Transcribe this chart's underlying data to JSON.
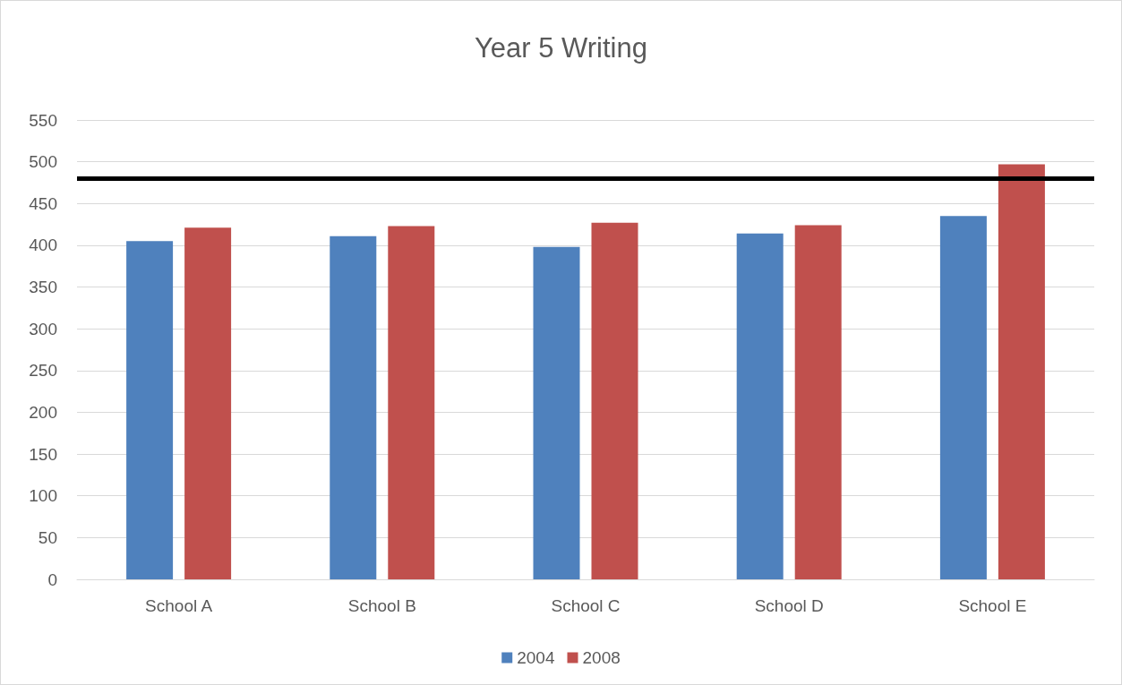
{
  "chart_data": {
    "type": "bar",
    "title": "Year 5 Writing",
    "categories": [
      "School A",
      "School B",
      "School C",
      "School D",
      "School E"
    ],
    "series": [
      {
        "name": "2004",
        "color": "#4f81bd",
        "values": [
          405,
          411,
          398,
          414,
          435
        ]
      },
      {
        "name": "2008",
        "color": "#c0504d",
        "values": [
          421,
          423,
          427,
          424,
          497
        ]
      }
    ],
    "ylim": [
      0,
      550
    ],
    "yticks": [
      0,
      50,
      100,
      150,
      200,
      250,
      300,
      350,
      400,
      450,
      500,
      550
    ],
    "grid": "y",
    "legend": "bottom",
    "ref_lines": [
      {
        "axis": "y",
        "value": 480,
        "color": "#000000"
      }
    ]
  }
}
